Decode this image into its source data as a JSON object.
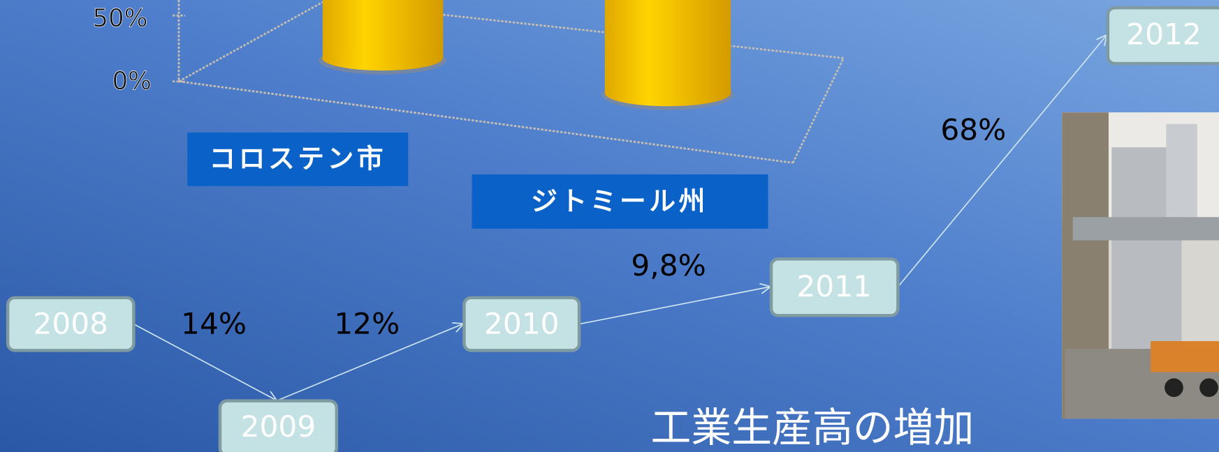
{
  "chart_axis": {
    "ticks": [
      "50%",
      "0%"
    ]
  },
  "bar_labels": [
    "コロステン市",
    "ジトミール州"
  ],
  "nodes": [
    {
      "label": "2008"
    },
    {
      "label": "2009"
    },
    {
      "label": "2010"
    },
    {
      "label": "2011"
    },
    {
      "label": "2012"
    }
  ],
  "edges": [
    {
      "label": "14%"
    },
    {
      "label": "12%"
    },
    {
      "label": "9,8%"
    },
    {
      "label": "68%"
    }
  ],
  "title": "工業生産高の増加"
}
